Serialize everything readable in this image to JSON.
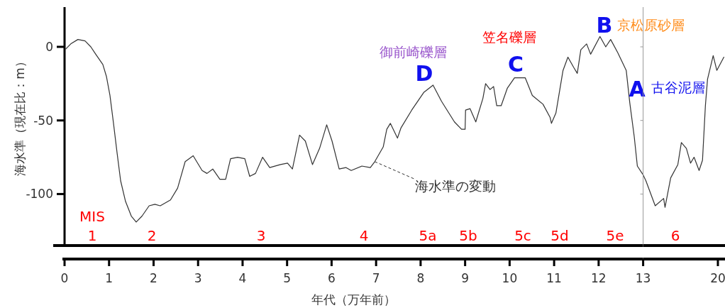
{
  "chart_data": [
    {
      "type": "line",
      "xlabel": "年代（万年前）",
      "ylabel": "海水準（現在比：m）",
      "xlim": [
        0,
        13
      ],
      "ylim": [
        -135,
        27
      ],
      "xticks": [
        0,
        1,
        2,
        3,
        4,
        5,
        6,
        7,
        8,
        9,
        10,
        11,
        12
      ],
      "yticks": [
        0,
        -50,
        {
          "value": -100,
          "label": "-100"
        }
      ],
      "series": [
        {
          "color": "#333333",
          "x": [
            0.03,
            0.14,
            0.3,
            0.46,
            0.59,
            0.7,
            0.86,
            0.94,
            1.02,
            1.1,
            1.18,
            1.26,
            1.37,
            1.5,
            1.61,
            1.74,
            1.9,
            2.03,
            2.15,
            2.38,
            2.54,
            2.71,
            2.89,
            3.09,
            3.2,
            3.33,
            3.49,
            3.62,
            3.73,
            3.89,
            4.05,
            4.16,
            4.29,
            4.45,
            4.61,
            4.85,
            5.01,
            5.12,
            5.28,
            5.41,
            5.57,
            5.73,
            5.89,
            6.01,
            6.17,
            6.32,
            6.44,
            6.68,
            6.87,
            6.97,
            7.16,
            7.24,
            7.32,
            7.48,
            7.56,
            7.8,
            8.07,
            8.28,
            8.47,
            8.76,
            8.92,
            9.0,
            9.01,
            9.11,
            9.24,
            9.4,
            9.46,
            9.56,
            9.64,
            9.71,
            9.81,
            9.95,
            10.11,
            10.35,
            10.51,
            10.75,
            10.91,
            10.94,
            11.04,
            11.2,
            11.31,
            11.44,
            11.52,
            11.6,
            11.73,
            11.82,
            12.03,
            12.16,
            12.27,
            12.43,
            12.62,
            12.7,
            12.8,
            12.87,
            13.0
          ],
          "values": [
            -1.4,
            2,
            5,
            4,
            0,
            -5,
            -12,
            -20,
            -33,
            -52,
            -72,
            -91,
            -105,
            -115,
            -119,
            -115,
            -108,
            -107,
            -108,
            -104,
            -96,
            -78,
            -74,
            -84,
            -86,
            -83,
            -90,
            -90,
            -76,
            -75,
            -76,
            -88,
            -86,
            -75,
            -82,
            -80,
            -79,
            -83,
            -60,
            -64,
            -80,
            -69,
            -53,
            -64,
            -83,
            -82,
            -84,
            -81,
            -82,
            -78,
            -68,
            -56,
            -52,
            -62,
            -55,
            -43,
            -31,
            -26,
            -37,
            -51,
            -56,
            -56,
            -43,
            -42,
            -51,
            -35,
            -25,
            -29,
            -27,
            -40,
            -40,
            -28,
            -21,
            -21,
            -33,
            -39,
            -48,
            -52,
            -45,
            -16,
            -7,
            -14,
            -18,
            -2,
            2,
            -5,
            7,
            0,
            5,
            -4,
            -16,
            -38,
            -61,
            -81,
            -87
          ]
        }
      ],
      "annotations": [
        "MIS",
        "1",
        "2",
        "3",
        "4",
        "5a",
        "5b",
        "5c",
        "5d",
        "5e",
        "D",
        "C",
        "B",
        "A",
        "御前崎礫層",
        "笠名礫層",
        "京松原砂層",
        "古谷泥層",
        {
          "text": "海水準の変動",
          "x": 6.97,
          "y": -78
        }
      ]
    },
    {
      "type": "line",
      "xlim": [
        13,
        20.6
      ],
      "ylim": [
        -135,
        27
      ],
      "xticks": [
        13,
        20
      ],
      "yticks": [
        0,
        -50,
        -100
      ],
      "tick_labels": "x",
      "series": [
        {
          "color": "#333333",
          "x": [
            13.0,
            13.26,
            14.13,
            14.92,
            15.05,
            15.58,
            16.25,
            16.58,
            17.05,
            17.44,
            17.77,
            18.24,
            18.56,
            18.83,
            19.03,
            19.56,
            19.9,
            20.56
          ],
          "values": [
            -87,
            -91,
            -108,
            -103,
            -109,
            -89,
            -80,
            -65,
            -69,
            -79,
            -75,
            -84,
            -77,
            -40,
            -22,
            -6,
            -16,
            -7
          ]
        }
      ],
      "annotations": [
        "6"
      ]
    }
  ]
}
